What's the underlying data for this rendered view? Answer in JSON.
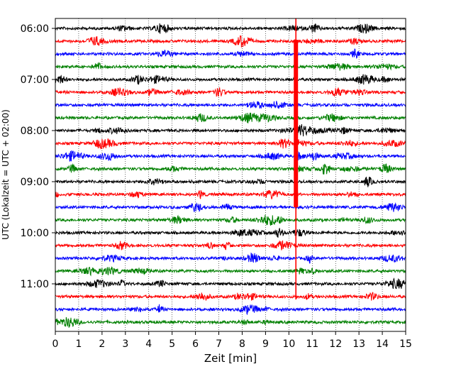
{
  "chart_data": {
    "type": "line",
    "chart_kind": "helicorder",
    "xlabel": "Zeit  [min]",
    "ylabel": "UTC (Lokalzeit = UTC + 02:00)",
    "x_ticks": [
      "0",
      "1",
      "2",
      "3",
      "4",
      "5",
      "6",
      "7",
      "8",
      "9",
      "10",
      "11",
      "12",
      "13",
      "14",
      "15"
    ],
    "xlim": [
      0,
      15
    ],
    "y_ticks": [
      "06:00",
      "07:00",
      "08:00",
      "09:00",
      "10:00",
      "11:00"
    ],
    "trace_interval_min": 15,
    "first_trace": "06:00",
    "last_trace": "11:45",
    "grid": "vertical dotted at each minute",
    "trace_colors": [
      "#000000",
      "#ff0000",
      "#0000ff",
      "#008000"
    ],
    "event": {
      "time_min": 10.3,
      "color": "#ff0000",
      "strongest_traces": [
        "08:00",
        "08:15",
        "08:30",
        "08:45"
      ]
    }
  }
}
